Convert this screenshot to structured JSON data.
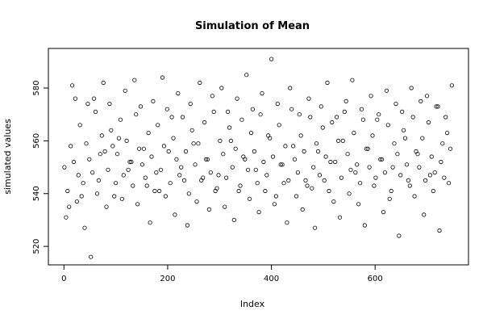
{
  "chart_data": {
    "type": "scatter",
    "title": "Simulation of Mean",
    "xlabel": "Index",
    "ylabel": "simulated values",
    "xlim": [
      -30,
      780
    ],
    "ylim": [
      513,
      595
    ],
    "x_ticks": [
      0,
      200,
      400,
      600
    ],
    "y_ticks": [
      520,
      540,
      560,
      580
    ],
    "grid": false,
    "legend": "none",
    "n_points": 750,
    "series": [
      {
        "x": [
          1,
          7,
          13,
          19,
          25,
          31,
          37,
          43,
          49,
          55,
          61,
          67,
          73,
          79,
          85,
          91,
          97,
          103,
          109,
          115,
          121,
          127,
          133,
          139,
          145,
          151,
          157,
          163,
          169,
          175,
          181,
          187,
          193,
          199,
          205,
          211,
          217,
          223,
          229,
          235,
          241,
          247,
          253,
          259,
          265,
          271,
          277,
          283,
          289,
          295,
          301,
          307,
          313,
          319,
          325,
          331,
          337,
          343,
          349,
          355,
          361,
          367,
          373,
          379,
          385,
          391,
          397,
          403,
          409,
          415,
          421,
          427,
          433,
          439,
          445,
          451,
          457,
          463,
          469,
          475,
          481,
          487,
          493,
          499,
          505,
          511,
          517,
          523,
          529,
          535,
          541,
          547,
          553,
          559,
          565,
          571,
          577,
          583,
          589,
          595,
          601,
          607,
          613,
          619,
          625,
          631,
          637,
          643,
          649,
          655,
          661,
          667,
          673,
          679,
          685,
          691,
          697,
          703,
          709,
          715,
          721,
          727,
          733,
          739,
          745,
          4,
          16,
          28,
          40,
          58,
          64,
          76,
          82,
          88,
          100,
          112,
          118,
          124,
          136,
          142,
          148,
          160,
          166,
          172,
          184,
          190,
          196,
          208,
          214,
          220,
          232,
          238,
          244,
          256,
          262,
          268,
          280,
          286,
          292,
          304,
          310,
          316,
          328,
          334,
          340,
          352,
          358,
          364,
          376,
          382,
          388,
          400,
          406,
          412,
          424,
          430,
          436,
          448,
          454,
          460,
          472,
          478,
          484,
          496,
          502,
          508,
          520,
          526,
          532,
          544,
          550,
          556,
          568,
          574,
          580,
          592,
          598,
          604,
          616,
          622,
          628,
          640,
          646,
          652,
          664,
          670,
          676,
          688,
          694,
          700,
          712,
          718,
          724,
          736,
          742,
          748,
          10,
          22,
          34,
          46,
          52,
          70,
          94,
          106,
          130,
          154,
          178,
          202,
          226,
          250,
          274,
          298,
          322,
          346,
          370,
          394,
          418,
          442,
          466,
          490,
          514,
          538,
          562,
          586,
          610,
          634,
          658,
          682,
          706,
          730
        ],
        "y": [
          550,
          541,
          558,
          552,
          537,
          566,
          544,
          559,
          553,
          548,
          571,
          545,
          562,
          556,
          549,
          564,
          539,
          555,
          568,
          547,
          560,
          552,
          543,
          570,
          557,
          551,
          546,
          563,
          554,
          541,
          566,
          549,
          558,
          572,
          544,
          561,
          553,
          547,
          569,
          556,
          540,
          564,
          551,
          559,
          545,
          567,
          553,
          548,
          571,
          542,
          560,
          555,
          546,
          565,
          550,
          557,
          541,
          568,
          553,
          549,
          563,
          556,
          544,
          570,
          552,
          547,
          561,
          554,
          539,
          566,
          551,
          558,
          545,
          572,
          553,
          548,
          562,
          556,
          543,
          569,
          550,
          559,
          547,
          565,
          554,
          541,
          567,
          552,
          560,
          546,
          571,
          555,
          549,
          563,
          551,
          544,
          568,
          557,
          550,
          562,
          546,
          570,
          553,
          548,
          566,
          541,
          559,
          555,
          547,
          564,
          551,
          543,
          569,
          556,
          550,
          561,
          545,
          567,
          554,
          548,
          573,
          552,
          546,
          563,
          557,
          531,
          581,
          547,
          527,
          576,
          540,
          582,
          535,
          574,
          544,
          538,
          579,
          549,
          583,
          536,
          573,
          543,
          529,
          575,
          541,
          584,
          539,
          569,
          532,
          578,
          545,
          528,
          574,
          537,
          582,
          546,
          534,
          577,
          541,
          580,
          535,
          571,
          530,
          576,
          543,
          585,
          538,
          572,
          533,
          578,
          541,
          591,
          536,
          574,
          544,
          529,
          580,
          539,
          570,
          534,
          576,
          542,
          527,
          573,
          545,
          582,
          537,
          569,
          531,
          575,
          540,
          583,
          536,
          572,
          528,
          577,
          543,
          568,
          533,
          579,
          538,
          574,
          524,
          571,
          545,
          580,
          539,
          575,
          532,
          577,
          541,
          573,
          526,
          569,
          544,
          581,
          535,
          576,
          539,
          574,
          516,
          555,
          558,
          561,
          552,
          557,
          548,
          556,
          550,
          559,
          553,
          547,
          560,
          554,
          549,
          562,
          551,
          558,
          545,
          556,
          552,
          560,
          548,
          557,
          553,
          550,
          561,
          555,
          547,
          559
        ]
      }
    ]
  }
}
